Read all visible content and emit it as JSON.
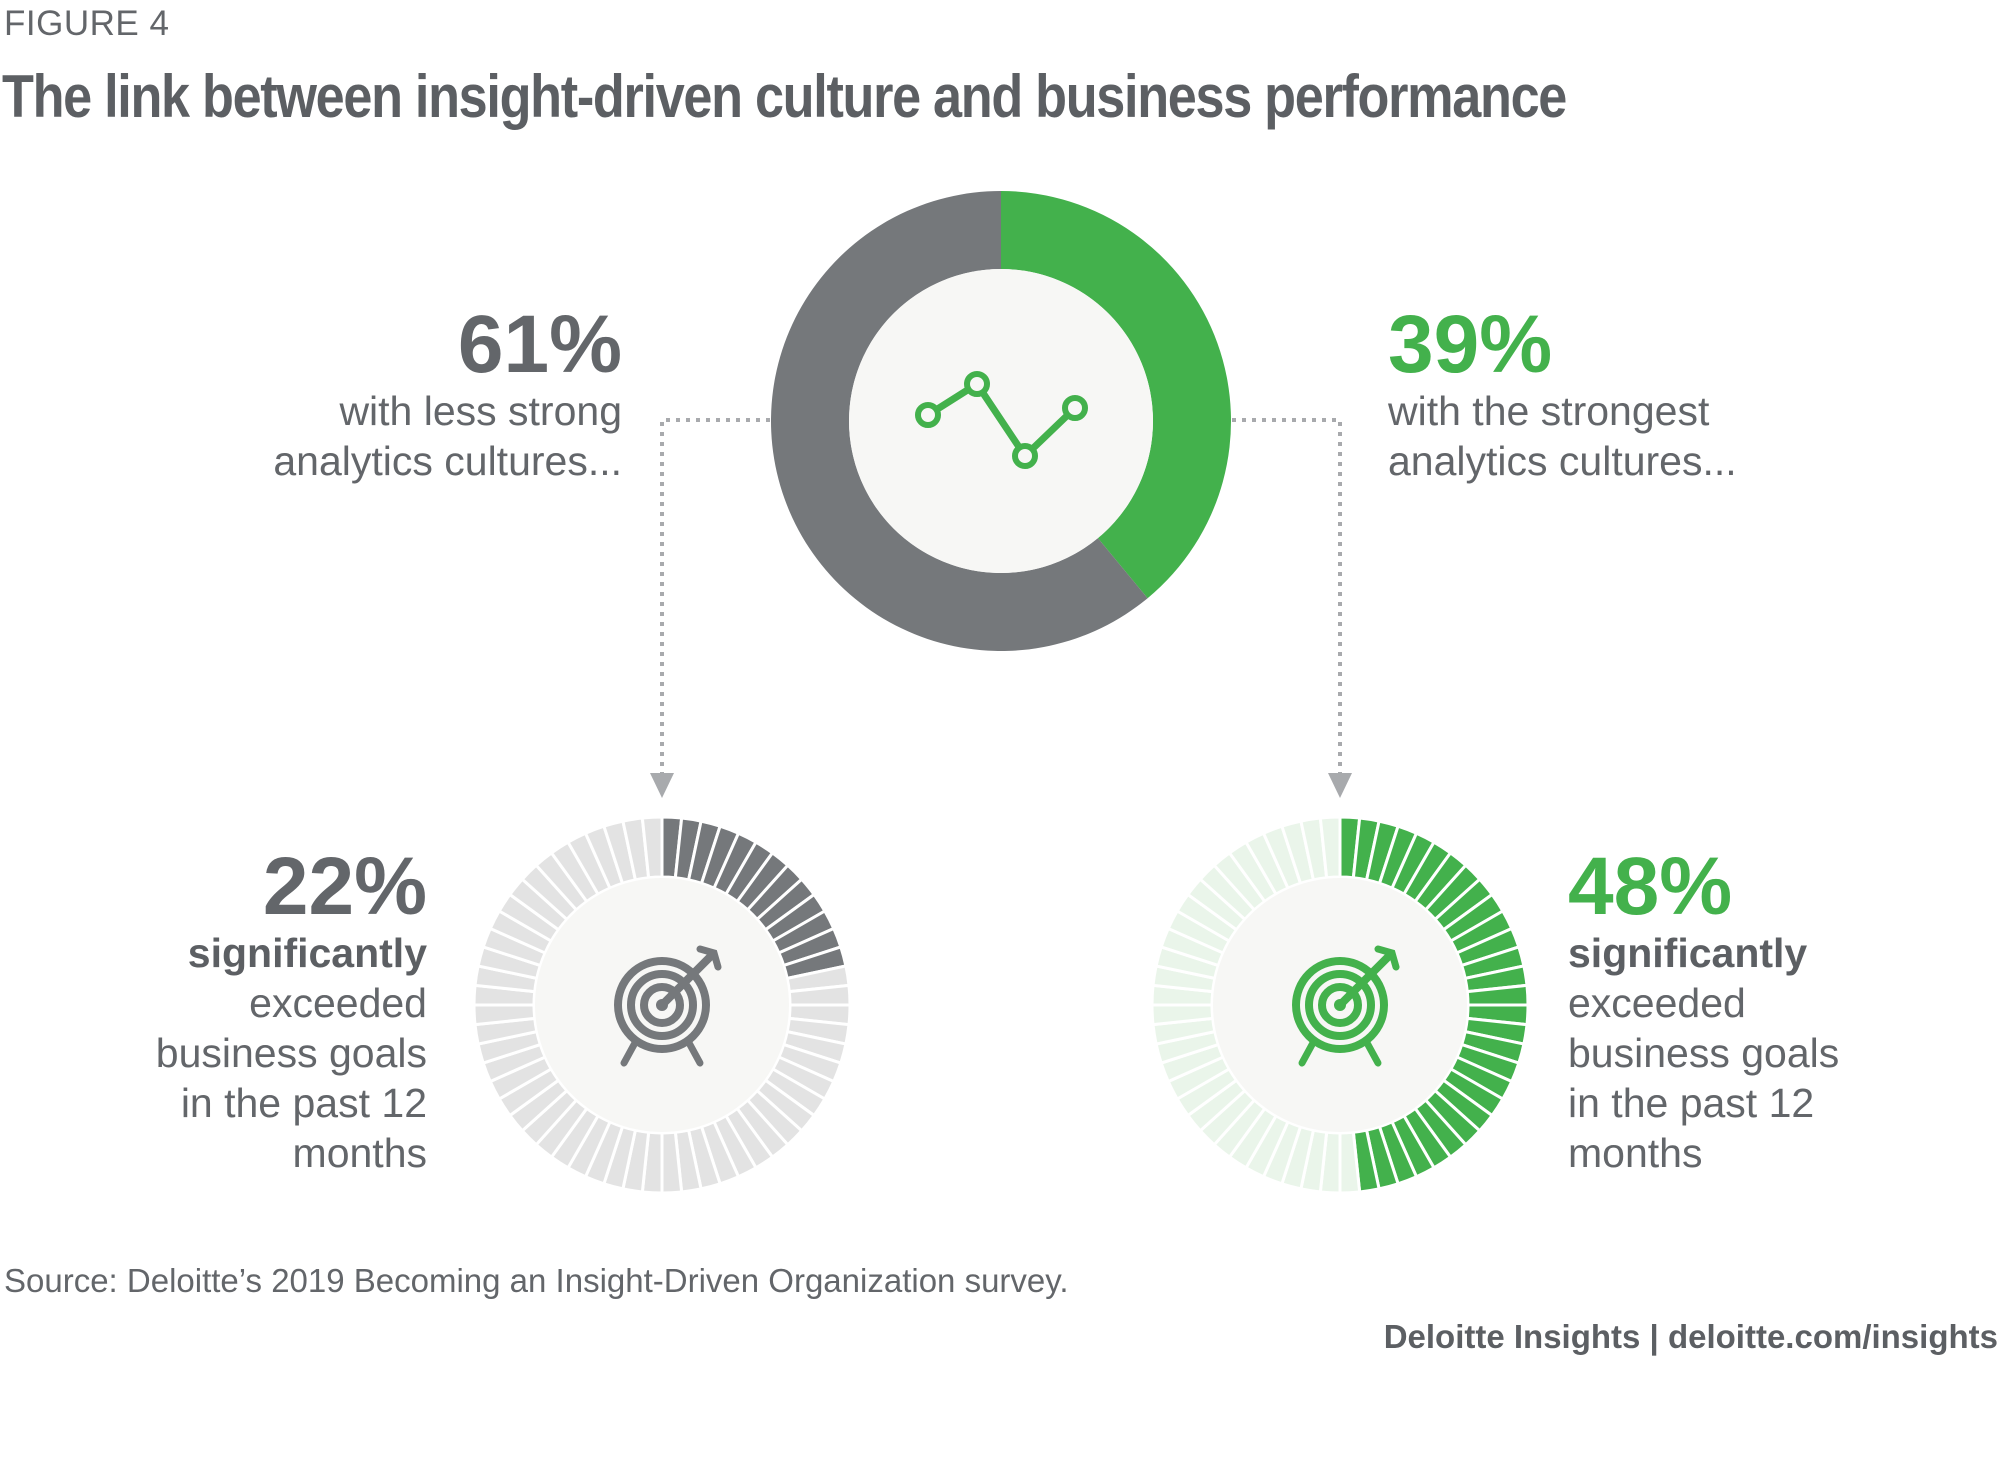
{
  "figure_label": "FIGURE 4",
  "title": "The link between insight-driven culture and business performance",
  "left_stat": {
    "value": "61%",
    "line1": "with less strong",
    "line2": "analytics cultures..."
  },
  "right_stat": {
    "value": "39%",
    "line1": "with the strongest",
    "line2": "analytics cultures..."
  },
  "left_result": {
    "value": "22%",
    "bold": "significantly",
    "line1": "exceeded",
    "line2": "business goals",
    "line3": "in the past 12",
    "line4": "months"
  },
  "right_result": {
    "value": "48%",
    "bold": "significantly",
    "line1": "exceeded",
    "line2": "business goals",
    "line3": "in the past 12",
    "line4": "months"
  },
  "source": "Source: Deloitte’s 2019 Becoming an Insight-Driven Organization survey.",
  "footer": "Deloitte Insights | deloitte.com/insights",
  "colors": {
    "grey": "#75787b",
    "green": "#43b14c",
    "light_grey": "#e3e3e3",
    "light_green": "#eaf5ea",
    "center_fill": "#f7f7f5"
  },
  "icons": {
    "top_center": "line-chart-icon",
    "bottom_left": "target-icon",
    "bottom_right": "target-icon"
  },
  "chart_data": [
    {
      "type": "pie",
      "subtype": "donut",
      "categories": [
        "with less strong analytics cultures",
        "with the strongest analytics cultures"
      ],
      "values": [
        61,
        39
      ],
      "colors": [
        "#75787b",
        "#43b14c"
      ]
    },
    {
      "type": "pie",
      "subtype": "segmented-gauge",
      "categories": [
        "significantly exceeded business goals",
        "other"
      ],
      "values": [
        22,
        78
      ],
      "colors": [
        "#75787b",
        "#e3e3e3"
      ]
    },
    {
      "type": "pie",
      "subtype": "segmented-gauge",
      "categories": [
        "significantly exceeded business goals",
        "other"
      ],
      "values": [
        48,
        52
      ],
      "colors": [
        "#43b14c",
        "#eaf5ea"
      ]
    }
  ]
}
